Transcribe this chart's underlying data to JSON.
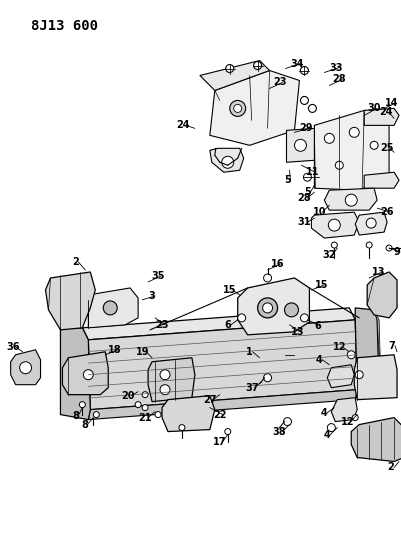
{
  "title": "8J13 600",
  "bg": "#ffffff",
  "lc": "#000000",
  "fw": 4.02,
  "fh": 5.33,
  "dpi": 100
}
